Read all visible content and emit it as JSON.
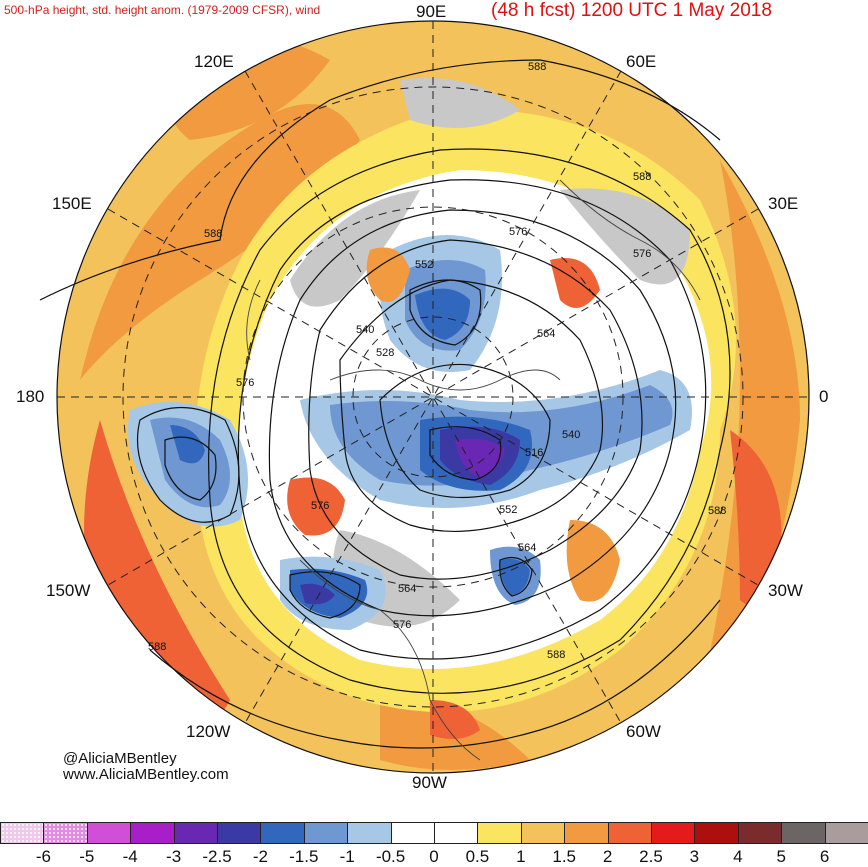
{
  "header": {
    "left_title": "500-hPa height, std. height anom. (1979-2009 CFSR), wind",
    "right_title": "(48 h fcst) 1200 UTC 1 May 2018"
  },
  "longitude_labels": {
    "top": "90E",
    "top_right": "60E",
    "upper_right": "30E",
    "right": "0",
    "lower_right": "30W",
    "bottom_right": "60W",
    "bottom": "90W",
    "bottom_left": "120W",
    "lower_left": "150W",
    "left": "180",
    "upper_left": "150E",
    "top_left": "120E"
  },
  "height_contour_labels": [
    "588",
    "588",
    "588",
    "576",
    "576",
    "576",
    "576",
    "552",
    "540",
    "528",
    "564",
    "540",
    "516",
    "552",
    "564",
    "564",
    "576",
    "588",
    "588",
    "588"
  ],
  "credit": {
    "handle": "@AliciaMBentley",
    "website": "www.AliciaMBentley.com"
  },
  "colorbar": {
    "labels": [
      "-6",
      "-5",
      "-4",
      "-3",
      "-2.5",
      "-2",
      "-1.5",
      "-1",
      "-0.5",
      "0",
      "0.5",
      "1",
      "1.5",
      "2",
      "2.5",
      "3",
      "4",
      "5",
      "6"
    ],
    "colors": [
      "#f0c8ec",
      "#e58ae3",
      "#d04fd6",
      "#a81ec9",
      "#6a27b4",
      "#3b3aa5",
      "#3167bd",
      "#6f97d2",
      "#a6c8e6",
      "#ffffff",
      "#ffffff",
      "#fbe45f",
      "#f3c25a",
      "#f19a40",
      "#ee6236",
      "#e51b1b",
      "#ad0f0f",
      "#7a2c2c",
      "#6b6565",
      "#a89c9c"
    ]
  },
  "colors": {
    "title_red": "#e01010",
    "ocean_white": "#ffffff",
    "gray_shade": "#c8c8c8"
  }
}
